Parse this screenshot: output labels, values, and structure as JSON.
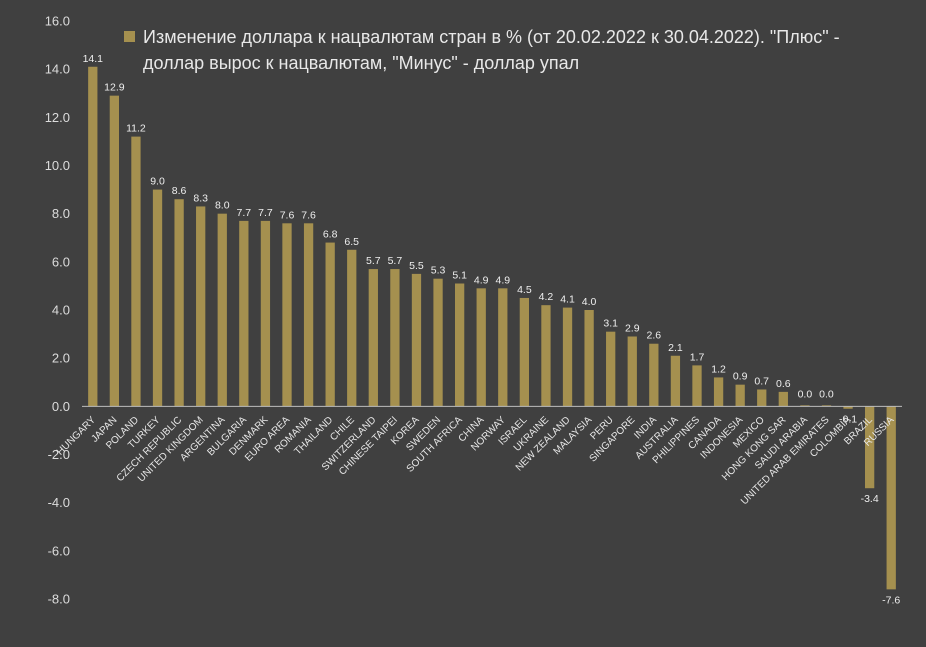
{
  "chart_data": {
    "type": "bar",
    "title": "",
    "xlabel": "",
    "ylabel": "",
    "ylim": [
      -8,
      16
    ],
    "yticks": [
      "16.0",
      "14.0",
      "12.0",
      "10.0",
      "8.0",
      "6.0",
      "4.0",
      "2.0",
      "0.0",
      "-2.0",
      "-4.0",
      "-6.0",
      "-8.0"
    ],
    "grid": false,
    "legend_position": "top",
    "bar_color": "#a5904f",
    "series": [
      {
        "name": "Изменение доллара к нацвалютам стран в % (от 20.02.2022 к 30.04.2022). \"Плюс\" - доллар вырос к нацвалютам, \"Минус\" - доллар упал",
        "name_lines": [
          "Изменение доллара к нацвалютам стран в % (от 20.02.2022 к 30.04.2022). \"Плюс\" -",
          "доллар вырос к нацвалютам, \"Минус\" - доллар упал"
        ],
        "values": [
          14.1,
          12.9,
          11.2,
          9.0,
          8.6,
          8.3,
          8.0,
          7.7,
          7.7,
          7.6,
          7.6,
          6.8,
          6.5,
          5.7,
          5.7,
          5.5,
          5.3,
          5.1,
          4.9,
          4.9,
          4.5,
          4.2,
          4.1,
          4.0,
          3.1,
          2.9,
          2.6,
          2.1,
          1.7,
          1.2,
          0.9,
          0.7,
          0.6,
          0.0,
          0.0,
          -0.1,
          -3.4,
          -7.6
        ],
        "labels": [
          "14.1",
          "12.9",
          "11.2",
          "9.0",
          "8.6",
          "8.3",
          "8.0",
          "7.7",
          "7.7",
          "7.6",
          "7.6",
          "6.8",
          "6.5",
          "5.7",
          "5.7",
          "5.5",
          "5.3",
          "5.1",
          "4.9",
          "4.9",
          "4.5",
          "4.2",
          "4.1",
          "4.0",
          "3.1",
          "2.9",
          "2.6",
          "2.1",
          "1.7",
          "1.2",
          "0.9",
          "0.7",
          "0.6",
          "0.0",
          "0.0",
          "-0.1",
          "-3.4",
          "-7.6"
        ]
      }
    ],
    "categories": [
      "HUNGARY",
      "JAPAN",
      "POLAND",
      "TURKEY",
      "CZECH REPUBLIC",
      "UNITED KINGDOM",
      "ARGENTINA",
      "BULGARIA",
      "DENMARK",
      "EURO AREA",
      "ROMANIA",
      "THAILAND",
      "CHILE",
      "SWITZERLAND",
      "CHINESE TAIPEI",
      "KOREA",
      "SWEDEN",
      "SOUTH AFRICA",
      "CHINA",
      "NORWAY",
      "ISRAEL",
      "UKRAINE",
      "NEW ZEALAND",
      "MALAYSIA",
      "PERU",
      "SINGAPORE",
      "INDIA",
      "AUSTRALIA",
      "PHILIPPINES",
      "CANADA",
      "INDONESIA",
      "MEXICO",
      "HONG KONG SAR",
      "SAUDI ARABIA",
      "UNITED ARAB EMIRATES",
      "COLOMBIA",
      "BRAZIL",
      "RUSSIA"
    ]
  }
}
